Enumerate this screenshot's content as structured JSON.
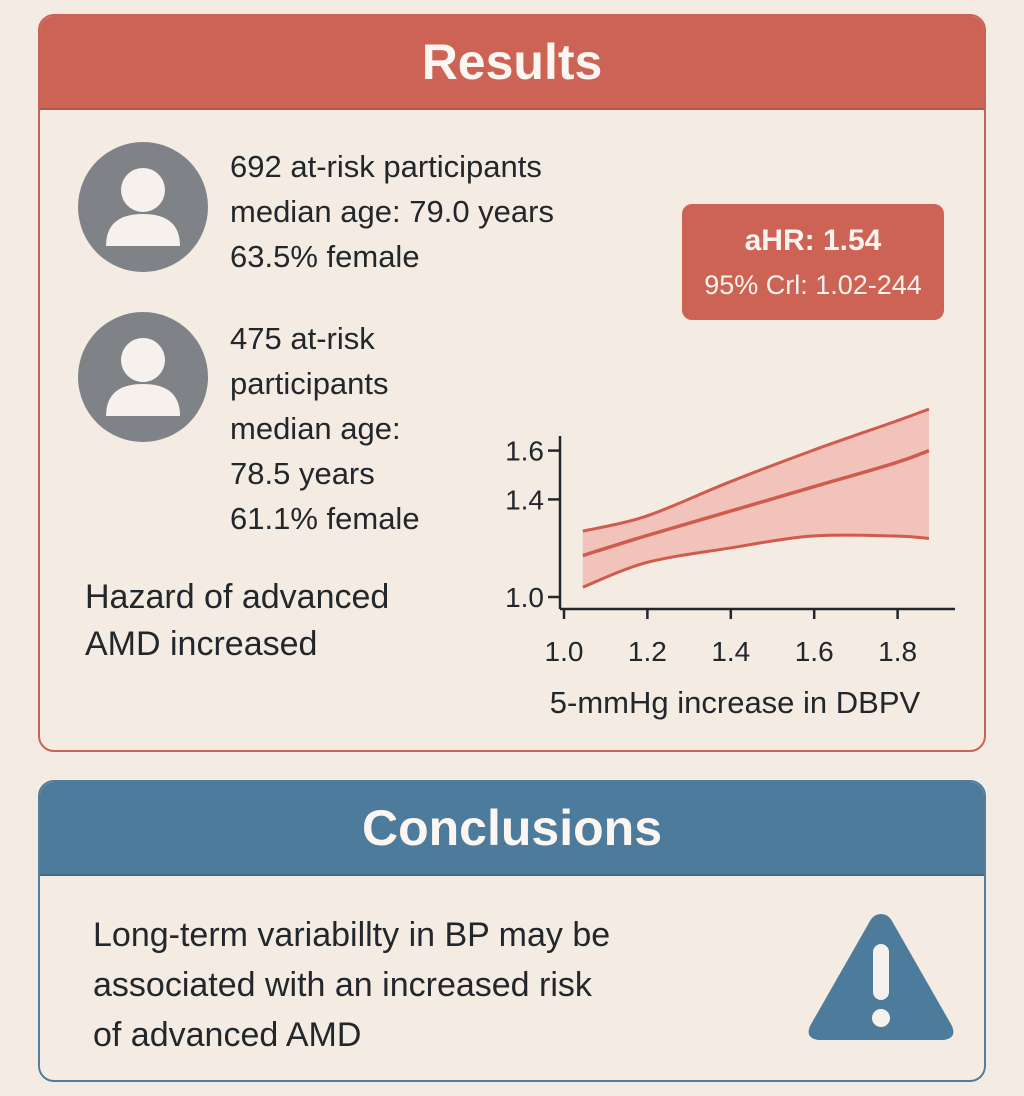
{
  "results": {
    "title": "Results",
    "group1": {
      "avatar_icon": "person-icon",
      "lines": [
        "692 at-risk participants",
        "median age: 79.0 years",
        "63.5% female"
      ]
    },
    "group2": {
      "avatar_icon": "person-icon",
      "lines": [
        "475 at-risk",
        "participants",
        "median age:",
        "78.5 years",
        "61.1% female"
      ]
    },
    "hazard_lines": [
      "Hazard of advanced",
      "AMD increased"
    ],
    "ahr": {
      "title": "aHR: 1.54",
      "ci": "95% Crl: 1.02-244"
    }
  },
  "chart_data": {
    "type": "line",
    "title": "",
    "xlabel": "5-mmHg increase in DBPV",
    "ylabel": "",
    "xlim": [
      1.0,
      1.9
    ],
    "ylim": [
      1.0,
      1.7
    ],
    "x_ticks": [
      "1.0",
      "1.2",
      "1.4",
      "1.6",
      "1.8"
    ],
    "y_ticks": [
      "1.0",
      "1.4",
      "1.6"
    ],
    "series": [
      {
        "x": [
          1.05,
          1.2,
          1.4,
          1.6,
          1.8,
          1.88
        ],
        "estimate": [
          1.17,
          1.25,
          1.35,
          1.45,
          1.55,
          1.6
        ],
        "lower": [
          1.04,
          1.14,
          1.2,
          1.25,
          1.25,
          1.24
        ],
        "upper": [
          1.27,
          1.33,
          1.47,
          1.6,
          1.72,
          1.77
        ]
      }
    ],
    "colors": {
      "line": "#d05b4d",
      "band": "#f0b6ad",
      "axis": "#22272c"
    },
    "grid": false
  },
  "conclusions": {
    "title": "Conclusions",
    "lines": [
      "Long-term variabillty in BP may be",
      "associated with an increased risk",
      "of advanced AMD"
    ],
    "icon": "warning-icon"
  },
  "colors": {
    "results_accent": "#cc6354",
    "conclusions_accent": "#4d7b9c",
    "background": "#f4ece3"
  }
}
